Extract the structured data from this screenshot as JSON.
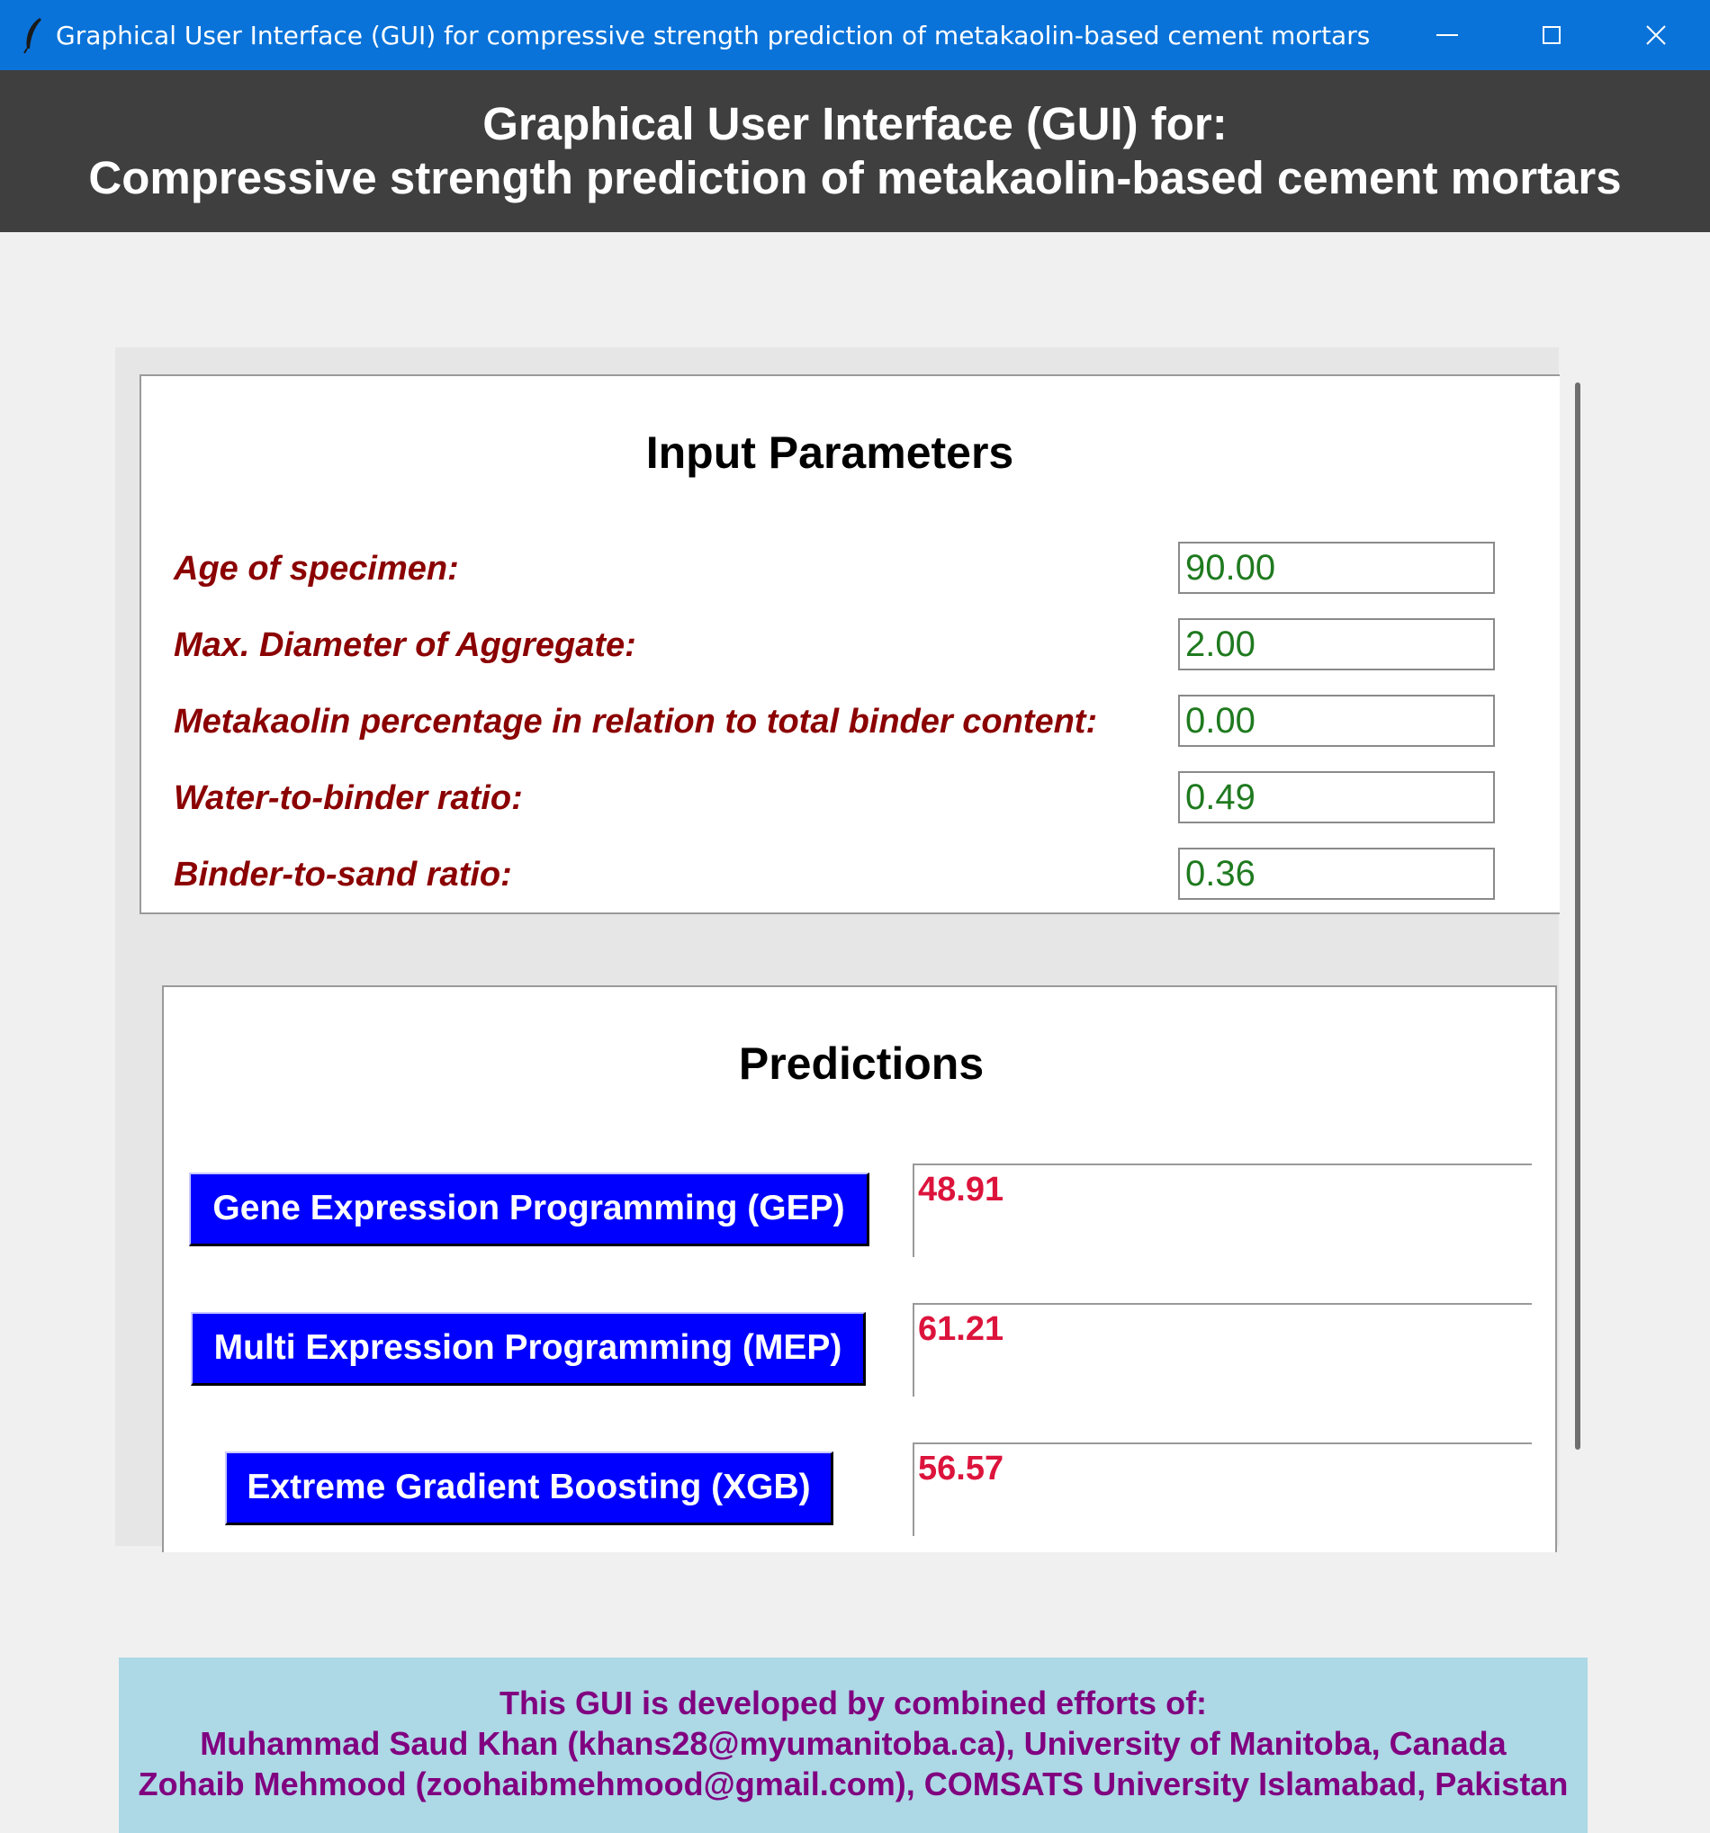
{
  "window": {
    "title": "Graphical User Interface (GUI) for compressive strength prediction of metakaolin-based cement mortars",
    "icon": "feather-icon",
    "controls": [
      "minimize-icon",
      "maximize-icon",
      "close-icon"
    ]
  },
  "header": {
    "line1": "Graphical User Interface (GUI) for:",
    "line2": "Compressive strength prediction of metakaolin-based cement mortars"
  },
  "input_parameters": {
    "title": "Input Parameters",
    "fields": [
      {
        "label": "Age of specimen:",
        "value": "90.00"
      },
      {
        "label": "Max. Diameter of Aggregate:",
        "value": "2.00"
      },
      {
        "label": "Metakaolin percentage in relation to total binder content:",
        "value": "0.00"
      },
      {
        "label": "Water-to-binder ratio:",
        "value": "0.49"
      },
      {
        "label": "Binder-to-sand ratio:",
        "value": "0.36"
      }
    ]
  },
  "predictions": {
    "title": "Predictions",
    "models": [
      {
        "button": "Gene Expression Programming (GEP)",
        "result": "48.91"
      },
      {
        "button": "Multi Expression Programming (MEP)",
        "result": "61.21"
      },
      {
        "button": "Extreme Gradient Boosting (XGB)",
        "result": "56.57"
      }
    ]
  },
  "credits": {
    "line1": "This GUI is developed by combined efforts of:",
    "line2": "Muhammad Saud Khan (khans28@myumanitoba.ca), University of Manitoba, Canada",
    "line3": "Zohaib Mehmood (zoohaibmehmood@gmail.com), COMSATS University Islamabad, Pakistan"
  },
  "colors": {
    "titlebar": "#0a73d9",
    "header": "#3f3f3f",
    "label": "#8b0000",
    "input_text": "#1f7a1f",
    "button": "#0000ff",
    "result_text": "#dc143c",
    "credits_bg": "#add8e6",
    "credits_text": "#800080"
  }
}
